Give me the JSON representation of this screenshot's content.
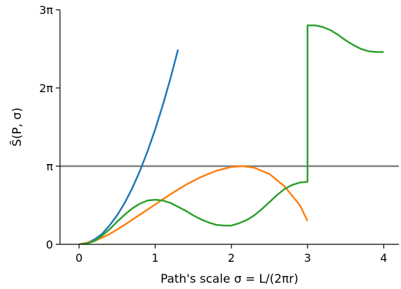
{
  "chart_data": {
    "type": "line",
    "title": "",
    "xlabel": "Path's scale σ = L/(2πr)",
    "ylabel": "S̄(P, σ)",
    "xlim": [
      -0.25,
      4.2
    ],
    "ylim": [
      0,
      3
    ],
    "y_unit_note": "y values in multiples of π",
    "x_ticks": [
      {
        "value": 0,
        "label": "0"
      },
      {
        "value": 1,
        "label": "1"
      },
      {
        "value": 2,
        "label": "2"
      },
      {
        "value": 3,
        "label": "3"
      },
      {
        "value": 4,
        "label": "4"
      }
    ],
    "y_ticks": [
      {
        "value": 0,
        "label": "0"
      },
      {
        "value": 1,
        "label": "π"
      },
      {
        "value": 2,
        "label": "2π"
      },
      {
        "value": 3,
        "label": "3π"
      }
    ],
    "grid": false,
    "legend": "none",
    "hlines": [
      {
        "y": 1,
        "color": "#808080"
      }
    ],
    "series": [
      {
        "color": "#1f77b4",
        "x": [
          0,
          0.1,
          0.2,
          0.3,
          0.4,
          0.5,
          0.6,
          0.7,
          0.8,
          0.9,
          1.0,
          1.1,
          1.2,
          1.3
        ],
        "y": [
          0,
          0.015,
          0.06,
          0.13,
          0.24,
          0.37,
          0.53,
          0.72,
          0.94,
          1.19,
          1.47,
          1.78,
          2.12,
          2.49
        ]
      },
      {
        "color": "#ff7f0e",
        "x": [
          0,
          0.2,
          0.4,
          0.6,
          0.8,
          1.0,
          1.2,
          1.4,
          1.6,
          1.8,
          2.0,
          2.15,
          2.3,
          2.5,
          2.7,
          2.9,
          3.0
        ],
        "y": [
          0,
          0.04,
          0.13,
          0.25,
          0.38,
          0.51,
          0.64,
          0.76,
          0.86,
          0.94,
          0.99,
          1.0,
          0.98,
          0.9,
          0.74,
          0.5,
          0.3
        ]
      },
      {
        "color": "#2ca02c",
        "x": [
          0,
          0.1,
          0.2,
          0.3,
          0.4,
          0.5,
          0.6,
          0.7,
          0.8,
          0.9,
          1.0,
          1.1,
          1.2,
          1.3,
          1.4,
          1.5,
          1.6,
          1.7,
          1.8,
          1.9,
          2.0,
          2.1,
          2.2,
          2.3,
          2.4,
          2.5,
          2.6,
          2.7,
          2.8,
          2.9,
          3.0,
          3.0,
          3.1,
          3.2,
          3.3,
          3.4,
          3.5,
          3.6,
          3.7,
          3.8,
          3.9,
          4.0
        ],
        "y": [
          0,
          0.01,
          0.04,
          0.11,
          0.19,
          0.29,
          0.38,
          0.46,
          0.52,
          0.56,
          0.57,
          0.56,
          0.53,
          0.48,
          0.43,
          0.37,
          0.32,
          0.28,
          0.25,
          0.24,
          0.24,
          0.27,
          0.31,
          0.37,
          0.45,
          0.54,
          0.63,
          0.71,
          0.76,
          0.79,
          0.8,
          2.8,
          2.8,
          2.78,
          2.74,
          2.68,
          2.61,
          2.55,
          2.5,
          2.47,
          2.46,
          2.46
        ]
      }
    ]
  }
}
